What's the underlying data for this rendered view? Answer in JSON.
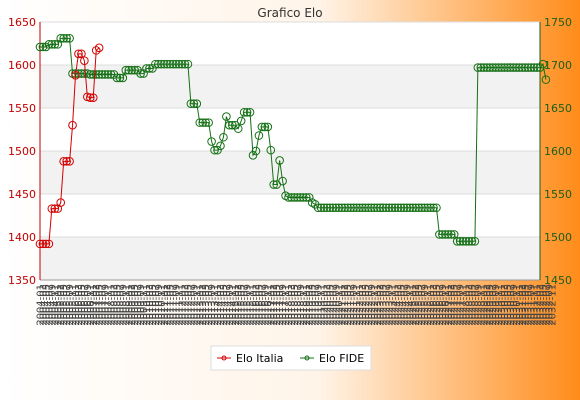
{
  "chart_data": {
    "type": "line",
    "title": "Grafico Elo",
    "legend_position": "bottom",
    "grid": true,
    "colors": {
      "background_left": "#ffffff",
      "background_right": "#ff8c1a",
      "plot_band": "#f2f2f2",
      "plot_bg": "#ffffff",
      "left_axis": "#c00000",
      "right_axis": "#1a5e1a",
      "series_italia": "#d40000",
      "series_fide": "#157015"
    },
    "y_left": {
      "min": 1350,
      "max": 1650,
      "ticks": [
        "1350",
        "1400",
        "1450",
        "1500",
        "1550",
        "1600",
        "1650"
      ]
    },
    "y_right": {
      "min": 1450,
      "max": 1750,
      "ticks": [
        "1450",
        "1500",
        "1550",
        "1600",
        "1650",
        "1700",
        "1750"
      ]
    },
    "point_count": 170,
    "x_tick_labels": [
      "2004-01",
      "2004-03",
      "2004-05",
      "2004-07",
      "2004-09",
      "2004-11",
      "2005-01",
      "2005-03",
      "2005-05",
      "2005-07",
      "2005-09",
      "2005-11",
      "2006-01",
      "2006-03",
      "2006-05",
      "2006-07",
      "2006-09",
      "2006-11",
      "2007-01",
      "2007-03",
      "2007-05",
      "2007-07",
      "2007-09",
      "2007-11",
      "2008-01",
      "2008-03",
      "2008-05",
      "2008-07",
      "2008-09",
      "2008-11",
      "2009-01",
      "2009-03",
      "2009-05",
      "2009-07",
      "2009-09",
      "2009-11",
      "2010-01",
      "2010-03",
      "2010-05",
      "2010-07",
      "2010-09",
      "2010-11",
      "2011-01",
      "2011-03",
      "2011-05",
      "2011-07",
      "2011-09",
      "2011-11",
      "2012-01",
      "2012-03",
      "2012-05",
      "2012-07",
      "2012-09",
      "2012-11",
      "2013-01",
      "2013-03",
      "2013-05",
      "2013-07",
      "2013-09",
      "2013-11",
      "2014-01",
      "2014-03",
      "2014-05",
      "2014-07",
      "2014-09",
      "2014-11",
      "2015-01",
      "2015-03",
      "2015-05",
      "2015-07",
      "2015-09",
      "2015-11",
      "2016-01",
      "2016-03",
      "2016-05",
      "2016-07",
      "2016-09",
      "2016-11",
      "2017-01",
      "2017-03",
      "2017-05",
      "2017-07",
      "2017-09",
      "2017-11",
      "2018-01",
      "2018-03",
      "2018-05",
      "2018-07",
      "2018-09",
      "2018-11",
      "2019-01",
      "2019-03",
      "2019-05",
      "2019-07",
      "2019-09",
      "2019-11",
      "2020-01",
      "2020-03",
      "2020-05",
      "2020-07",
      "2020-09",
      "2020-11",
      "2021-01",
      "2021-03",
      "2021-05",
      "2021-07",
      "2021-09",
      "2021-11",
      "2022-01",
      "2022-03",
      "2022-05",
      "2022-07",
      "2022-09",
      "2022-11",
      "2023-01",
      "2023-03",
      "2023-05",
      "2023-07",
      "2023-09",
      "2023-11",
      "2024-01",
      "2024-03",
      "2024-05",
      "2024-07",
      "2024-09",
      "2024-11",
      "2025-01",
      "2025-03",
      "2025-05",
      "2025-07",
      "2025-09",
      "2025-11",
      "2026-01",
      "2026-03",
      "2026-05",
      "2026-07",
      "2026-09",
      "2026-11",
      "2027-01",
      "2027-03",
      "2027-05",
      "2027-07",
      "2027-09",
      "2027-11",
      "2028-01",
      "2028-03",
      "2028-05",
      "2028-07",
      "2028-09",
      "2028-11",
      "2029-01",
      "2029-03",
      "2029-05",
      "2029-07",
      "2029-09",
      "2029-11",
      "2030-01",
      "2030-03",
      "2030-05",
      "2030-07",
      "2030-09",
      "2030-11",
      "2031-01",
      "2031-03",
      "2031-05",
      "2031-07",
      "2031-09",
      "2031-11",
      "2032-01",
      "2032-03",
      "2032-05",
      "2032-07",
      "2032-09",
      "2032-11"
    ],
    "series": [
      {
        "name": "Elo Italia",
        "axis": "left",
        "values": [
          1392,
          1392,
          1392,
          1392,
          1433,
          1433,
          1433,
          1440,
          1488,
          1488,
          1488,
          1530,
          1588,
          1613,
          1613,
          1605,
          1563,
          1562,
          1562,
          1617,
          1620
        ]
      },
      {
        "name": "Elo FIDE",
        "axis": "right",
        "values": [
          1721,
          1721,
          1721,
          1724,
          1724,
          1724,
          1724,
          1731,
          1731,
          1731,
          1731,
          1690,
          1690,
          1690,
          1690,
          1690,
          1690,
          1689,
          1689,
          1689,
          1689,
          1689,
          1689,
          1689,
          1689,
          1689,
          1685,
          1685,
          1685,
          1694,
          1694,
          1694,
          1694,
          1694,
          1690,
          1690,
          1696,
          1696,
          1696,
          1701,
          1701,
          1701,
          1701,
          1701,
          1701,
          1701,
          1701,
          1701,
          1701,
          1701,
          1701,
          1655,
          1655,
          1655,
          1633,
          1633,
          1633,
          1633,
          1611,
          1601,
          1601,
          1606,
          1616,
          1640,
          1630,
          1630,
          1630,
          1626,
          1635,
          1645,
          1645,
          1645,
          1595,
          1600,
          1618,
          1628,
          1628,
          1628,
          1601,
          1561,
          1561,
          1589,
          1565,
          1548,
          1546,
          1546,
          1546,
          1546,
          1546,
          1546,
          1546,
          1546,
          1540,
          1538,
          1534,
          1534,
          1534,
          1534,
          1534,
          1534,
          1534,
          1534,
          1534,
          1534,
          1534,
          1534,
          1534,
          1534,
          1534,
          1534,
          1534,
          1534,
          1534,
          1534,
          1534,
          1534,
          1534,
          1534,
          1534,
          1534,
          1534,
          1534,
          1534,
          1534,
          1534,
          1534,
          1534,
          1534,
          1534,
          1534,
          1534,
          1534,
          1534,
          1534,
          1534,
          1503,
          1503,
          1503,
          1503,
          1503,
          1503,
          1495,
          1495,
          1495,
          1495,
          1495,
          1495,
          1495,
          1697,
          1697,
          1697,
          1697,
          1697,
          1697,
          1697,
          1697,
          1697,
          1697,
          1697,
          1697,
          1697,
          1697,
          1697,
          1697,
          1697,
          1697,
          1697,
          1697,
          1697,
          1697,
          1701,
          1683
        ]
      }
    ]
  }
}
